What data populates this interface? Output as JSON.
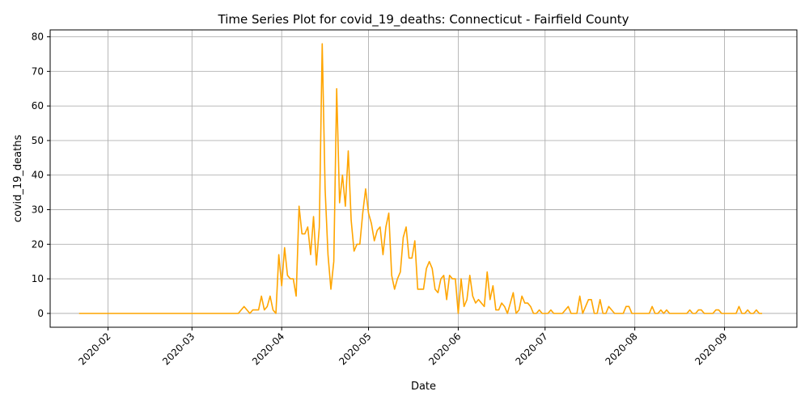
{
  "chart_data": {
    "type": "line",
    "title": "Time Series Plot for covid_19_deaths: Connecticut - Fairfield County",
    "xlabel": "Date",
    "ylabel": "covid_19_deaths",
    "x_ticks": [
      "2020-02",
      "2020-03",
      "2020-04",
      "2020-05",
      "2020-06",
      "2020-07",
      "2020-08",
      "2020-09"
    ],
    "x_tick_dates": [
      "2020-02-01",
      "2020-03-01",
      "2020-04-01",
      "2020-05-01",
      "2020-06-01",
      "2020-07-01",
      "2020-08-01",
      "2020-09-01"
    ],
    "y_ticks": [
      0,
      10,
      20,
      30,
      40,
      50,
      60,
      70,
      80
    ],
    "xlim": [
      "2020-01-12",
      "2020-09-26"
    ],
    "ylim": [
      -4,
      82
    ],
    "grid": true,
    "color": "#ffa500",
    "series": [
      {
        "start_date": "2020-01-22",
        "values": [
          0,
          0,
          0,
          0,
          0,
          0,
          0,
          0,
          0,
          0,
          0,
          0,
          0,
          0,
          0,
          0,
          0,
          0,
          0,
          0,
          0,
          0,
          0,
          0,
          0,
          0,
          0,
          0,
          0,
          0,
          0,
          0,
          0,
          0,
          0,
          0,
          0,
          0,
          0,
          0,
          0,
          0,
          0,
          0,
          0,
          0,
          0,
          0,
          0,
          0,
          0,
          0,
          0,
          0,
          0,
          0,
          1,
          2,
          1,
          0,
          1,
          1,
          1,
          5,
          1,
          2,
          5,
          1,
          0,
          17,
          8,
          19,
          11,
          10,
          10,
          5,
          31,
          23,
          23,
          25,
          17,
          28,
          14,
          25,
          78,
          36,
          17,
          7,
          15,
          65,
          32,
          40,
          31,
          47,
          27,
          18,
          20,
          20,
          29,
          36,
          29,
          26,
          21,
          24,
          25,
          17,
          25,
          29,
          11,
          7,
          10,
          12,
          22,
          25,
          16,
          16,
          21,
          7,
          7,
          7,
          13,
          15,
          13,
          7,
          6,
          10,
          11,
          4,
          11,
          10,
          10,
          0,
          10,
          2,
          4,
          11,
          5,
          3,
          4,
          3,
          2,
          12,
          4,
          8,
          1,
          1,
          3,
          2,
          0,
          3,
          6,
          0,
          1,
          5,
          3,
          3,
          2,
          0,
          0,
          1,
          0,
          0,
          0,
          1,
          0,
          0,
          0,
          0,
          1,
          2,
          0,
          0,
          0,
          5,
          0,
          2,
          4,
          4,
          0,
          0,
          4,
          0,
          0,
          2,
          1,
          0,
          0,
          0,
          0,
          2,
          2,
          0,
          0,
          0,
          0,
          0,
          0,
          0,
          2,
          0,
          0,
          1,
          0,
          1,
          0,
          0,
          0,
          0,
          0,
          0,
          0,
          1,
          0,
          0,
          1,
          1,
          0,
          0,
          0,
          0,
          1,
          1,
          0,
          0,
          0,
          0,
          0,
          0,
          2,
          0,
          0,
          1,
          0,
          0,
          1,
          0,
          0
        ]
      }
    ]
  }
}
